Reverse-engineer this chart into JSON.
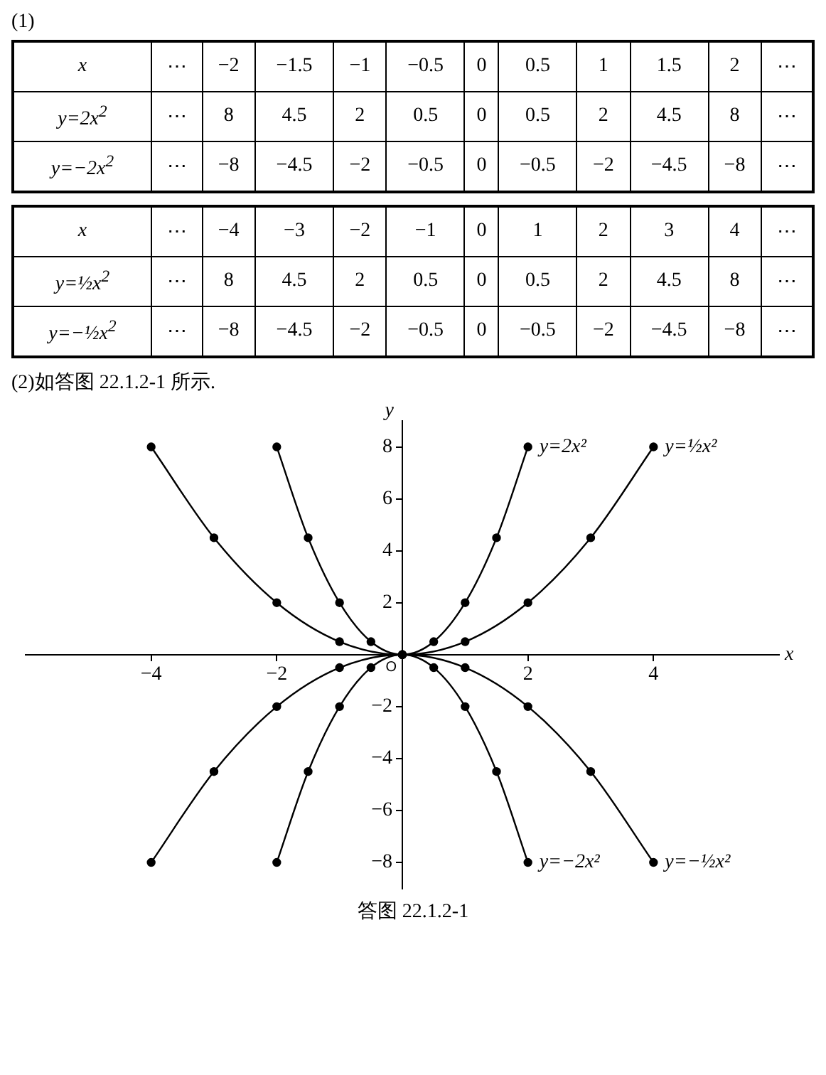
{
  "chart_data": [
    {
      "type": "heatmap",
      "annotations": [
        "(1)"
      ],
      "xlabel": "x",
      "cells": [
        [
          null,
          null,
          null,
          null,
          null,
          null,
          null,
          null,
          null,
          null,
          null
        ],
        [
          null,
          null,
          null,
          null,
          null,
          null,
          null,
          null,
          null,
          null,
          null
        ]
      ],
      "categories": [
        "⋯",
        "−2",
        "−1.5",
        "−1",
        "−0.5",
        "0",
        "0.5",
        "1",
        "1.5",
        "2",
        "⋯"
      ],
      "y_categories": [
        "y=2x$^{2}$",
        "y=−2x$^{2}$"
      ],
      "cell_labels": [
        [
          "⋯",
          "8",
          "4.5",
          "2",
          "0.5",
          "0",
          "0.5",
          "2",
          "4.5",
          "8",
          "⋯"
        ],
        [
          "⋯",
          "−8",
          "−4.5",
          "−2",
          "−0.5",
          "0",
          "−0.5",
          "−2",
          "−4.5",
          "−8",
          "⋯"
        ]
      ]
    },
    {
      "type": "heatmap",
      "xlabel": "x",
      "cells": [
        [
          null,
          null,
          null,
          null,
          null,
          null,
          null,
          null,
          null,
          null,
          null
        ],
        [
          null,
          null,
          null,
          null,
          null,
          null,
          null,
          null,
          null,
          null,
          null
        ]
      ],
      "categories": [
        "⋯",
        "−4",
        "−3",
        "−2",
        "−1",
        "0",
        "1",
        "2",
        "3",
        "4",
        "⋯"
      ],
      "y_categories": [
        "y=½x$^{2}$",
        "y=−½x$^{2}$"
      ],
      "cell_labels": [
        [
          "⋯",
          "8",
          "4.5",
          "2",
          "0.5",
          "0",
          "0.5",
          "2",
          "4.5",
          "8",
          "⋯"
        ],
        [
          "⋯",
          "−8",
          "−4.5",
          "−2",
          "−0.5",
          "0",
          "−0.5",
          "−2",
          "−4.5",
          "−8",
          "⋯"
        ]
      ]
    },
    {
      "type": "line",
      "xlabel": "x",
      "ylabel": "y",
      "annotations": [
        "(2)如答图 22.1.2-1 所示.",
        "答图 22.1.2-1",
        {
          "text": "O",
          "x": 0,
          "y": 0
        }
      ],
      "xlim": [
        -6,
        6
      ],
      "ylim": [
        -9,
        9
      ],
      "xticks": [
        -4,
        -2,
        2,
        4
      ],
      "yticks": [
        -8,
        -6,
        -4,
        -2,
        2,
        4,
        6,
        8
      ],
      "grid": false,
      "legend": false,
      "marker": "circle",
      "line_style": "solid",
      "series": [
        {
          "name": "y=2x²",
          "color": "#000000",
          "x": [
            -2,
            -1.5,
            -1,
            -0.5,
            0,
            0.5,
            1,
            1.5,
            2
          ],
          "values": [
            8,
            4.5,
            2,
            0.5,
            0,
            0.5,
            2,
            4.5,
            8
          ]
        },
        {
          "name": "y=−2x²",
          "color": "#000000",
          "x": [
            -2,
            -1.5,
            -1,
            -0.5,
            0,
            0.5,
            1,
            1.5,
            2
          ],
          "values": [
            -8,
            -4.5,
            -2,
            -0.5,
            0,
            -0.5,
            -2,
            -4.5,
            -8
          ]
        },
        {
          "name": "y=½x²",
          "color": "#000000",
          "x": [
            -4,
            -3,
            -2,
            -1,
            0,
            1,
            2,
            3,
            4
          ],
          "values": [
            8,
            4.5,
            2,
            0.5,
            0,
            0.5,
            2,
            4.5,
            8
          ]
        },
        {
          "name": "y=−½x²",
          "color": "#000000",
          "x": [
            -4,
            -3,
            -2,
            -1,
            0,
            1,
            2,
            3,
            4
          ],
          "values": [
            -8,
            -4.5,
            -2,
            -0.5,
            0,
            -0.5,
            -2,
            -4.5,
            -8
          ]
        }
      ]
    }
  ]
}
